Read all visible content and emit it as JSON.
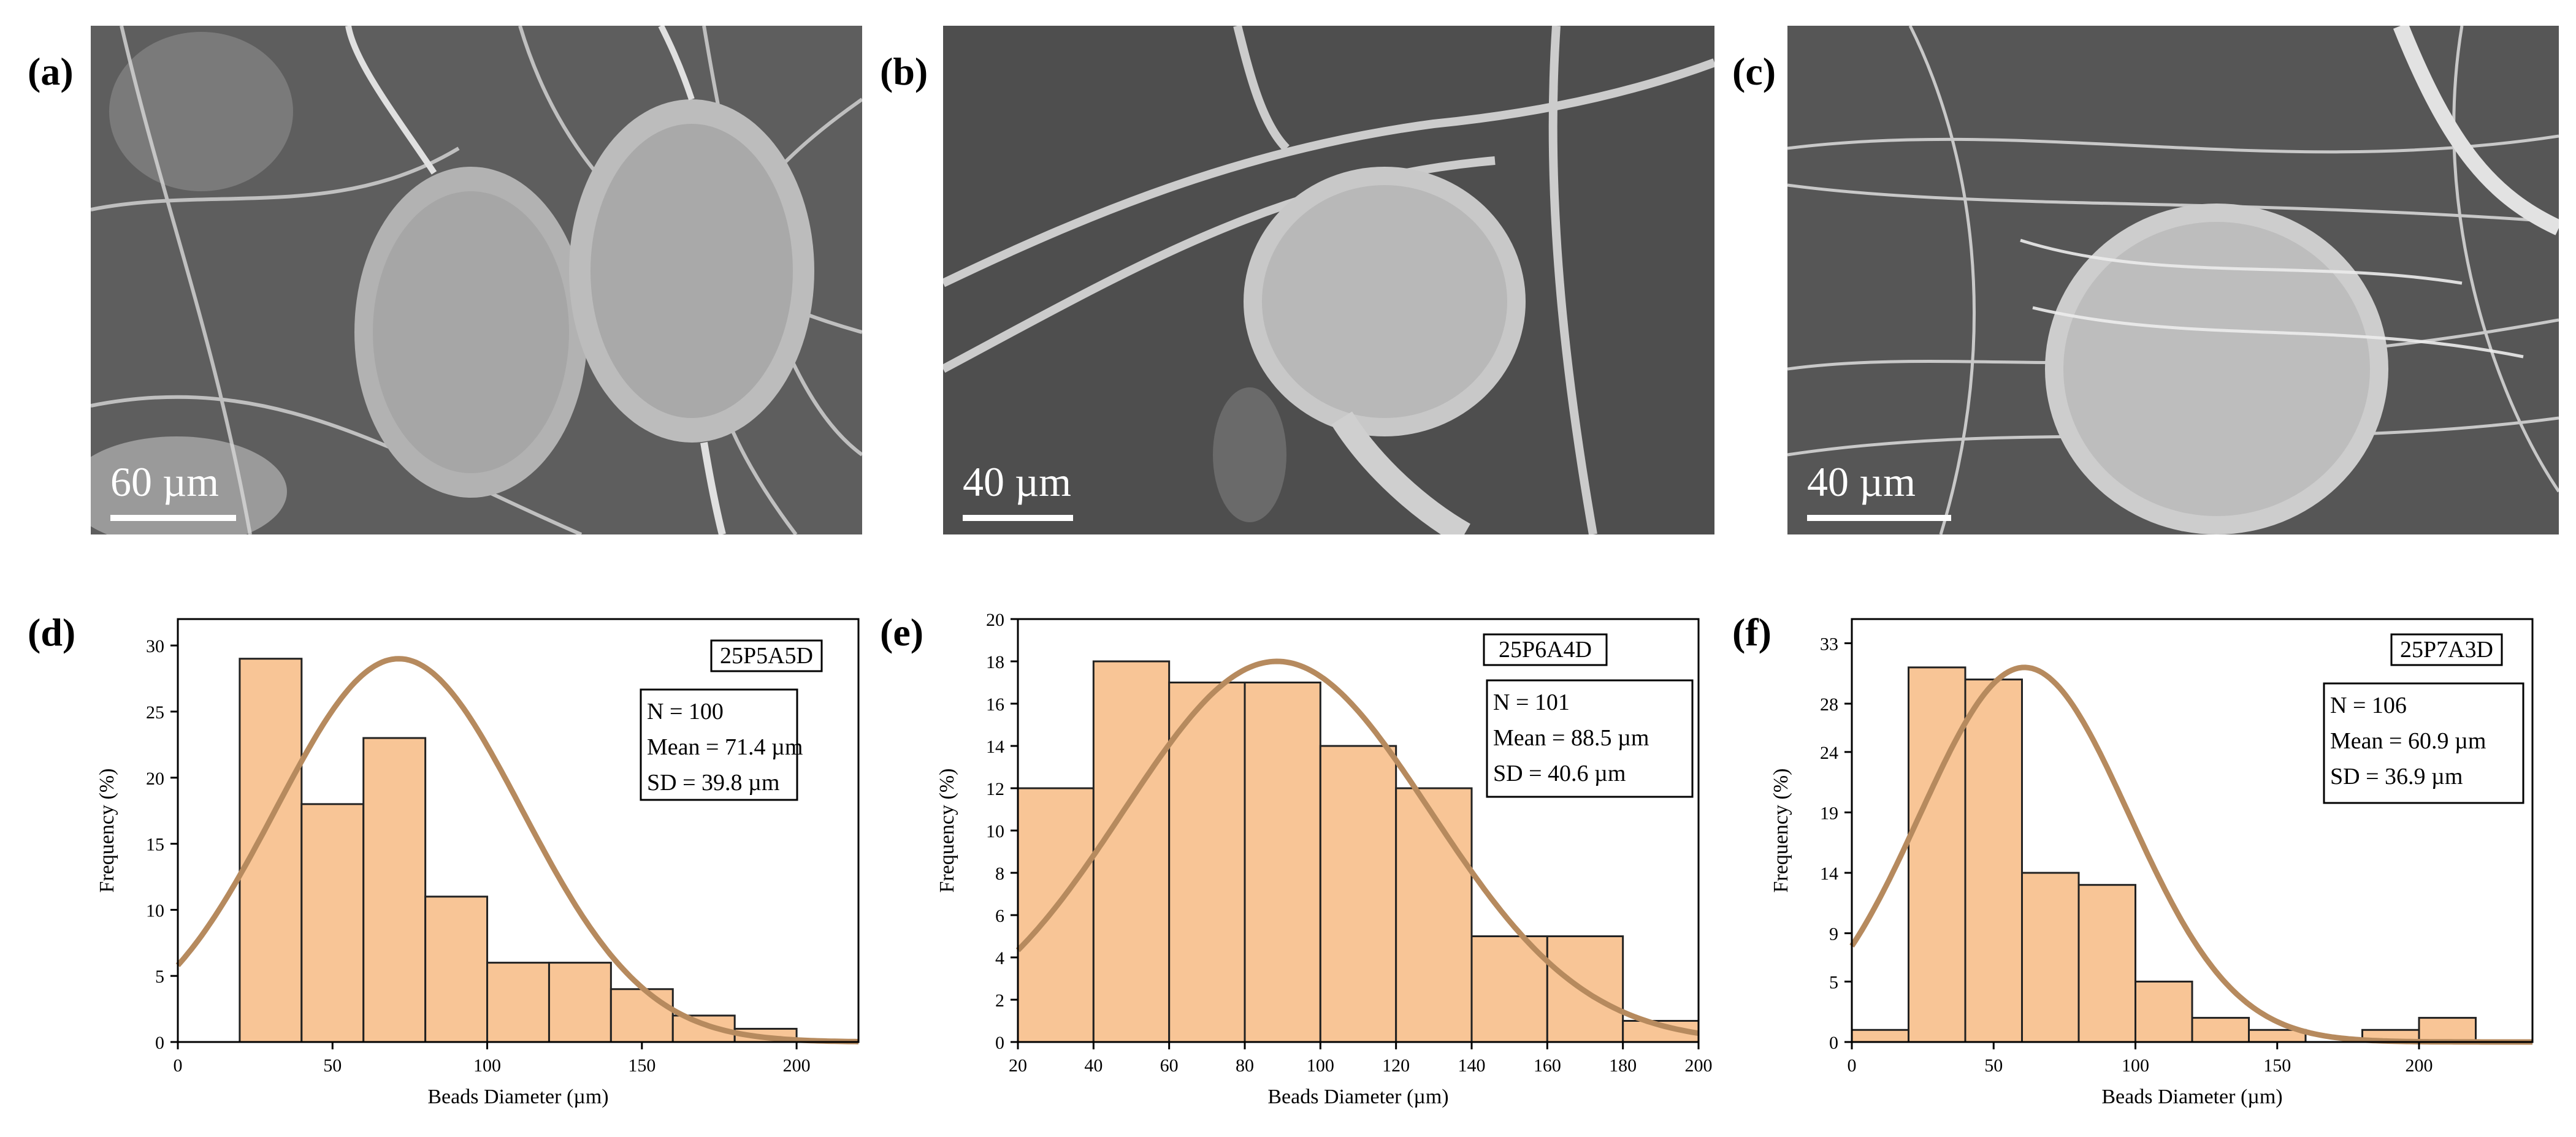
{
  "colors": {
    "bar_fill": "#f8c596",
    "bar_edge": "#222222",
    "curve": "#b68a5e",
    "sem_background": "#6b6b6b"
  },
  "panels": {
    "a": {
      "label": "(a)",
      "scale": "60 µm"
    },
    "b": {
      "label": "(b)",
      "scale": "40 µm"
    },
    "c": {
      "label": "(c)",
      "scale": "40 µm"
    },
    "d": {
      "label": "(d)"
    },
    "e": {
      "label": "(e)"
    },
    "f": {
      "label": "(f)"
    }
  },
  "chart_data": [
    {
      "type": "bar",
      "panel": "d",
      "sample": "25P5A5D",
      "stats": [
        "N = 100",
        "Mean = 71.4 µm",
        "SD = 39.8 µm"
      ],
      "xlabel": "Beads Diameter (µm)",
      "ylabel": "Frequency (%)",
      "xlim": [
        0,
        220
      ],
      "ylim": [
        0,
        32
      ],
      "xticks": [
        0,
        50,
        100,
        150,
        200
      ],
      "yticks": [
        0,
        5,
        10,
        15,
        20,
        25,
        30
      ],
      "bins": [
        [
          20,
          40,
          29
        ],
        [
          40,
          60,
          18
        ],
        [
          60,
          80,
          23
        ],
        [
          80,
          100,
          11
        ],
        [
          100,
          120,
          6
        ],
        [
          120,
          140,
          6
        ],
        [
          140,
          160,
          4
        ],
        [
          160,
          180,
          2
        ],
        [
          180,
          200,
          1
        ]
      ],
      "curve": {
        "mean": 71.4,
        "peak": 29,
        "sd": 39.8
      },
      "grid": false
    },
    {
      "type": "bar",
      "panel": "e",
      "sample": "25P6A4D",
      "stats": [
        "N = 101",
        "Mean = 88.5 µm",
        "SD = 40.6 µm"
      ],
      "xlabel": "Beads Diameter (µm)",
      "ylabel": "Frequency (%)",
      "xlim": [
        20,
        200
      ],
      "ylim": [
        0,
        20
      ],
      "xticks": [
        20,
        40,
        60,
        80,
        100,
        120,
        140,
        160,
        180,
        200
      ],
      "yticks": [
        0,
        2,
        4,
        6,
        8,
        10,
        12,
        14,
        16,
        18,
        20
      ],
      "bins": [
        [
          20,
          40,
          12
        ],
        [
          40,
          60,
          18
        ],
        [
          60,
          80,
          17
        ],
        [
          80,
          100,
          17
        ],
        [
          100,
          120,
          14
        ],
        [
          120,
          140,
          12
        ],
        [
          140,
          160,
          5
        ],
        [
          160,
          180,
          5
        ],
        [
          180,
          200,
          1
        ]
      ],
      "curve": {
        "mean": 88.5,
        "peak": 18,
        "sd": 40.6
      },
      "grid": false
    },
    {
      "type": "bar",
      "panel": "f",
      "sample": "25P7A3D",
      "stats": [
        "N = 106",
        "Mean = 60.9 µm",
        "SD = 36.9 µm"
      ],
      "xlabel": "Beads Diameter (µm)",
      "ylabel": "Frequency (%)",
      "xlim": [
        0,
        240
      ],
      "ylim": [
        0,
        35
      ],
      "xticks": [
        0,
        50,
        100,
        150,
        200
      ],
      "yticks": [
        0,
        5,
        9,
        14,
        19,
        24,
        28,
        33
      ],
      "bins": [
        [
          0,
          20,
          1
        ],
        [
          20,
          40,
          31
        ],
        [
          40,
          60,
          30
        ],
        [
          60,
          80,
          14
        ],
        [
          80,
          100,
          13
        ],
        [
          100,
          120,
          5
        ],
        [
          120,
          140,
          2
        ],
        [
          140,
          160,
          1
        ],
        [
          180,
          200,
          1
        ],
        [
          200,
          220,
          2
        ]
      ],
      "curve": {
        "mean": 60.9,
        "peak": 31,
        "sd": 36.9
      },
      "grid": false
    }
  ]
}
